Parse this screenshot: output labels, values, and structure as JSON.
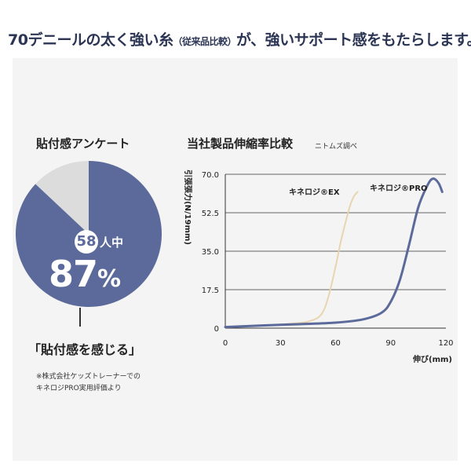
{
  "headline": {
    "part1": "70デニールの太く強い糸",
    "part2": "（従来品比較）",
    "part3": "が、強いサポート感をもたらします。"
  },
  "survey": {
    "title": "貼付感アンケート",
    "respondents": "58",
    "respondents_suffix": "人中",
    "percent_value": "87",
    "percent_sign": "%",
    "caption": "「貼付感を感じる」",
    "note_line1": "※株式会社ケッズトレーナーでの",
    "note_line2": "キネロジPRO実用評価より"
  },
  "colors": {
    "panel_bg": "#f4f4f4",
    "pie_main": "#5b6a9a",
    "pie_rest": "#dcdcdc",
    "line_pro": "#5b6a9a",
    "line_ex": "#e8d5b0",
    "headline": "#2b3553"
  },
  "chart_data": [
    {
      "type": "pie",
      "title": "貼付感アンケート",
      "categories": [
        "貼付感を感じる",
        ""
      ],
      "values": [
        87,
        13
      ]
    },
    {
      "type": "line",
      "title": "当社製品伸縮率比較",
      "source_note": "ニトムズ調べ",
      "xlabel": "伸び(mm)",
      "ylabel": "引張張力(N/19mm)",
      "xlim": [
        0,
        120
      ],
      "ylim": [
        0,
        70
      ],
      "xticks": [
        "0",
        "30",
        "60",
        "90",
        "120"
      ],
      "yticks": [
        "0",
        "17.5",
        "35.0",
        "52.5",
        "70.0"
      ],
      "grid": "horizontal",
      "series": [
        {
          "name": "キネロジ®EX",
          "x": [
            0,
            20,
            35,
            45,
            52,
            56,
            60,
            63,
            66,
            68,
            70,
            72
          ],
          "y": [
            0.5,
            1.2,
            2,
            3,
            6,
            14,
            28,
            40,
            50,
            56,
            60,
            62
          ]
        },
        {
          "name": "キネロジ®PRO",
          "x": [
            0,
            20,
            40,
            60,
            75,
            85,
            90,
            95,
            100,
            105,
            110,
            113,
            116,
            118
          ],
          "y": [
            0.5,
            1.2,
            1.8,
            2.5,
            4,
            7,
            12,
            22,
            38,
            55,
            65,
            68,
            66,
            62
          ]
        }
      ]
    }
  ]
}
